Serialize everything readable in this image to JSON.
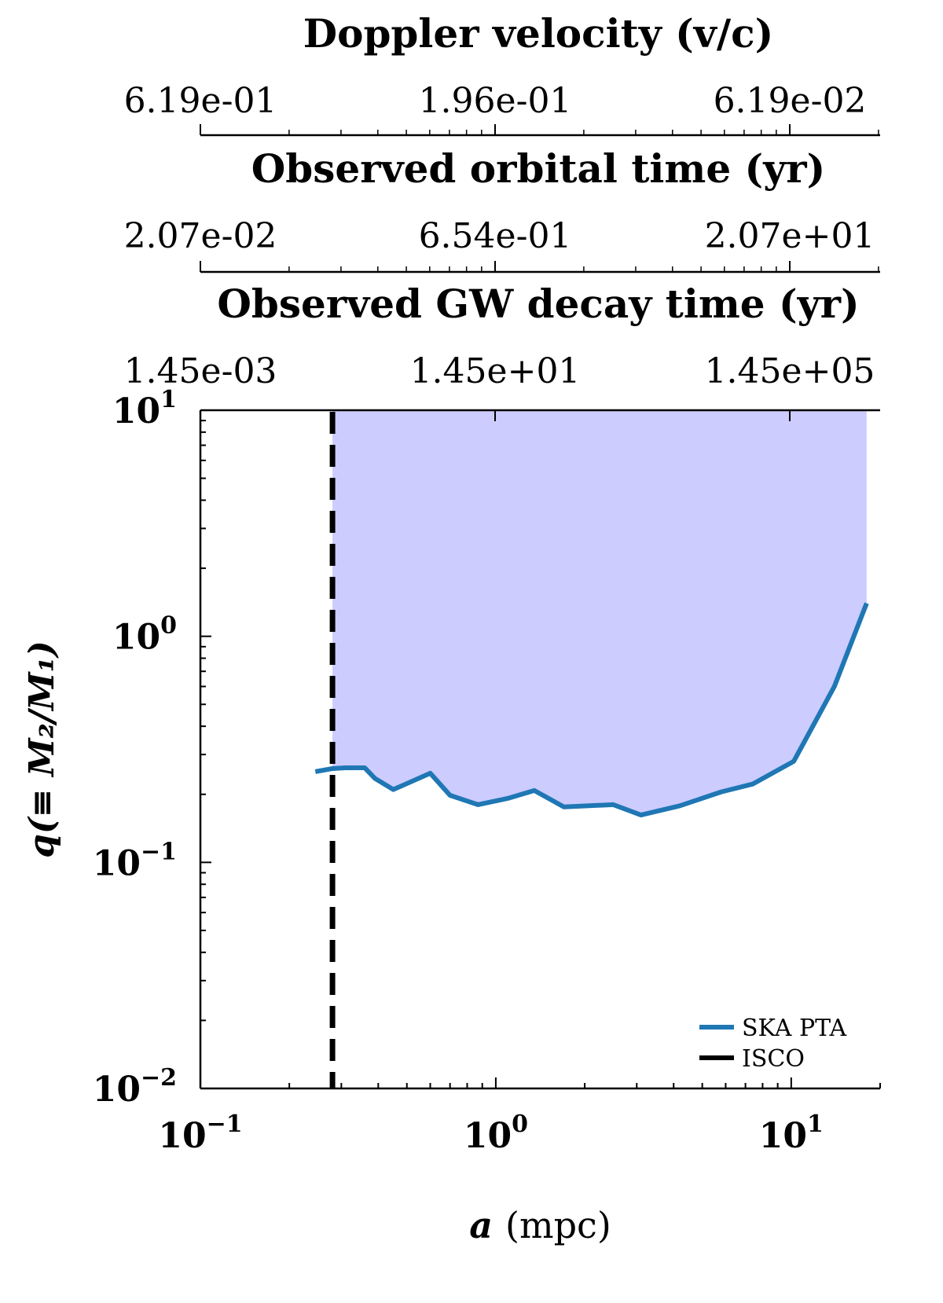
{
  "chart_data": {
    "type": "line",
    "xlabel_var": "a",
    "xlabel_unit": "(mpc)",
    "ylabel": "q(≡ M₂/M₁)",
    "xscale": "log",
    "yscale": "log",
    "xlim": [
      0.1,
      20.0
    ],
    "ylim": [
      0.01,
      10
    ],
    "x_ticks": [
      {
        "value": 0.1,
        "base": "10",
        "exp": "−1"
      },
      {
        "value": 1,
        "base": "10",
        "exp": "0"
      },
      {
        "value": 10,
        "base": "10",
        "exp": "1"
      }
    ],
    "y_ticks": [
      {
        "value": 0.01,
        "base": "10",
        "exp": "−2"
      },
      {
        "value": 0.1,
        "base": "10",
        "exp": "−1"
      },
      {
        "value": 1,
        "base": "10",
        "exp": "0"
      },
      {
        "value": 10,
        "base": "10",
        "exp": "1"
      }
    ],
    "series": [
      {
        "name": "SKA PTA",
        "color": "#1f77b4",
        "x": [
          0.245,
          0.28,
          0.31,
          0.36,
          0.39,
          0.45,
          0.6,
          0.7,
          0.87,
          1.1,
          1.35,
          1.7,
          2.5,
          3.1,
          4.2,
          5.8,
          7.4,
          10.2,
          14.0,
          18.0
        ],
        "y": [
          0.252,
          0.26,
          0.262,
          0.262,
          0.235,
          0.21,
          0.248,
          0.198,
          0.18,
          0.192,
          0.208,
          0.176,
          0.18,
          0.162,
          0.178,
          0.205,
          0.222,
          0.28,
          0.6,
          1.4
        ]
      }
    ],
    "fill": {
      "color": "#ccccff",
      "description_x_range": [
        0.28,
        18.0
      ],
      "upper": 10
    },
    "vlines": [
      {
        "name": "ISCO",
        "x": 0.28,
        "color": "#000000",
        "style": "dashed"
      }
    ],
    "legend": {
      "placement": "lower-right",
      "entries": [
        "SKA PTA",
        "ISCO"
      ]
    },
    "top_axes": [
      {
        "title": "Doppler velocity (v/c)",
        "tick_labels": [
          "6.19e-01",
          "1.96e-01",
          "6.19e-02"
        ]
      },
      {
        "title": "Observed orbital time (yr)",
        "tick_labels": [
          "2.07e-02",
          "6.54e-01",
          "2.07e+01"
        ]
      },
      {
        "title": "Observed GW decay time (yr)",
        "tick_labels": [
          "1.45e-03",
          "1.45e+01",
          "1.45e+05"
        ]
      }
    ]
  }
}
